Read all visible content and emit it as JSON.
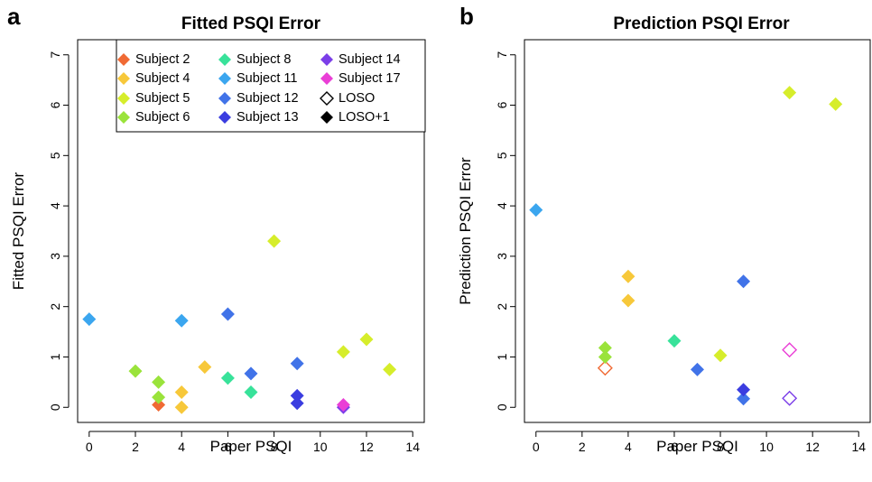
{
  "chart_data": [
    {
      "type": "scatter",
      "panel_letter": "a",
      "title": "Fitted PSQI Error",
      "xlabel": "Paper PSQI",
      "ylabel": "Fitted PSQI Error",
      "xlim": [
        -0.5,
        14.5
      ],
      "ylim": [
        -0.3,
        7.3
      ],
      "xticks": [
        0,
        2,
        4,
        6,
        8,
        10,
        12,
        14
      ],
      "yticks": [
        0,
        1,
        2,
        3,
        4,
        5,
        6,
        7
      ],
      "grid": false,
      "legend_placement": "top-right",
      "series": [
        {
          "name": "Subject 2",
          "color": "#f06a34",
          "marker": "filled-diamond",
          "points": [
            [
              3,
              0.05
            ]
          ]
        },
        {
          "name": "Subject 4",
          "color": "#f7c83a",
          "marker": "filled-diamond",
          "points": [
            [
              4,
              0.3
            ],
            [
              4,
              0.0
            ],
            [
              5,
              0.8
            ]
          ]
        },
        {
          "name": "Subject 5",
          "color": "#d6ed2b",
          "marker": "filled-diamond",
          "points": [
            [
              8,
              3.3
            ],
            [
              11,
              1.1
            ],
            [
              12,
              1.35
            ],
            [
              13,
              0.75
            ]
          ]
        },
        {
          "name": "Subject 6",
          "color": "#9ae33b",
          "marker": "filled-diamond",
          "points": [
            [
              2,
              0.72
            ],
            [
              3,
              0.5
            ],
            [
              3,
              0.2
            ]
          ]
        },
        {
          "name": "Subject 8",
          "color": "#38e29a",
          "marker": "filled-diamond",
          "points": [
            [
              6,
              0.58
            ],
            [
              7,
              0.3
            ]
          ]
        },
        {
          "name": "Subject 11",
          "color": "#3ba6ef",
          "marker": "filled-diamond",
          "points": [
            [
              0,
              1.75
            ],
            [
              4,
              1.72
            ]
          ]
        },
        {
          "name": "Subject 12",
          "color": "#4173e8",
          "marker": "filled-diamond",
          "points": [
            [
              6,
              1.85
            ],
            [
              7,
              0.67
            ],
            [
              9,
              0.87
            ]
          ]
        },
        {
          "name": "Subject 13",
          "color": "#3b3de0",
          "marker": "filled-diamond",
          "points": [
            [
              9,
              0.23
            ],
            [
              9,
              0.08
            ]
          ]
        },
        {
          "name": "Subject 14",
          "color": "#7b3ee8",
          "marker": "filled-diamond",
          "points": [
            [
              11,
              0.0
            ]
          ]
        },
        {
          "name": "Subject 17",
          "color": "#ea3fd6",
          "marker": "filled-diamond",
          "points": [
            [
              11,
              0.05
            ]
          ]
        },
        {
          "name": "LOSO",
          "color": "#000000",
          "marker": "open-diamond",
          "points": []
        },
        {
          "name": "LOSO+1",
          "color": "#000000",
          "marker": "filled-diamond",
          "points": []
        }
      ]
    },
    {
      "type": "scatter",
      "panel_letter": "b",
      "title": "Prediction PSQI Error",
      "xlabel": "Paper PSQI",
      "ylabel": "Prediction PSQI Error",
      "xlim": [
        -0.5,
        14.5
      ],
      "ylim": [
        -0.3,
        7.3
      ],
      "xticks": [
        0,
        2,
        4,
        6,
        8,
        10,
        12,
        14
      ],
      "yticks": [
        0,
        1,
        2,
        3,
        4,
        5,
        6,
        7
      ],
      "grid": false,
      "series": [
        {
          "name": "Subject 2",
          "color": "#f06a34",
          "marker": "open-diamond",
          "points": [
            [
              3,
              0.78
            ]
          ]
        },
        {
          "name": "Subject 4",
          "color": "#f7c83a",
          "marker": "filled-diamond",
          "points": [
            [
              4,
              2.6
            ],
            [
              4,
              2.12
            ]
          ]
        },
        {
          "name": "Subject 5",
          "color": "#d6ed2b",
          "marker": "filled-diamond",
          "points": [
            [
              8,
              1.03
            ],
            [
              11,
              6.25
            ],
            [
              13,
              6.02
            ]
          ]
        },
        {
          "name": "Subject 6",
          "color": "#9ae33b",
          "marker": "filled-diamond",
          "points": [
            [
              3,
              1.18
            ],
            [
              3,
              1.0
            ]
          ]
        },
        {
          "name": "Subject 8",
          "color": "#38e29a",
          "marker": "filled-diamond",
          "points": [
            [
              6,
              1.32
            ]
          ]
        },
        {
          "name": "Subject 11",
          "color": "#3ba6ef",
          "marker": "filled-diamond",
          "points": [
            [
              0,
              3.92
            ]
          ]
        },
        {
          "name": "Subject 12",
          "color": "#4173e8",
          "marker": "filled-diamond",
          "points": [
            [
              7,
              0.75
            ],
            [
              9,
              2.5
            ],
            [
              9,
              0.17
            ]
          ]
        },
        {
          "name": "Subject 13",
          "color": "#3b3de0",
          "marker": "filled-diamond",
          "points": [
            [
              9,
              0.35
            ]
          ]
        },
        {
          "name": "Subject 14",
          "color": "#7b3ee8",
          "marker": "open-diamond",
          "points": [
            [
              11,
              0.18
            ]
          ]
        },
        {
          "name": "Subject 17",
          "color": "#ea3fd6",
          "marker": "open-diamond",
          "points": [
            [
              11,
              1.14
            ]
          ]
        }
      ]
    }
  ]
}
